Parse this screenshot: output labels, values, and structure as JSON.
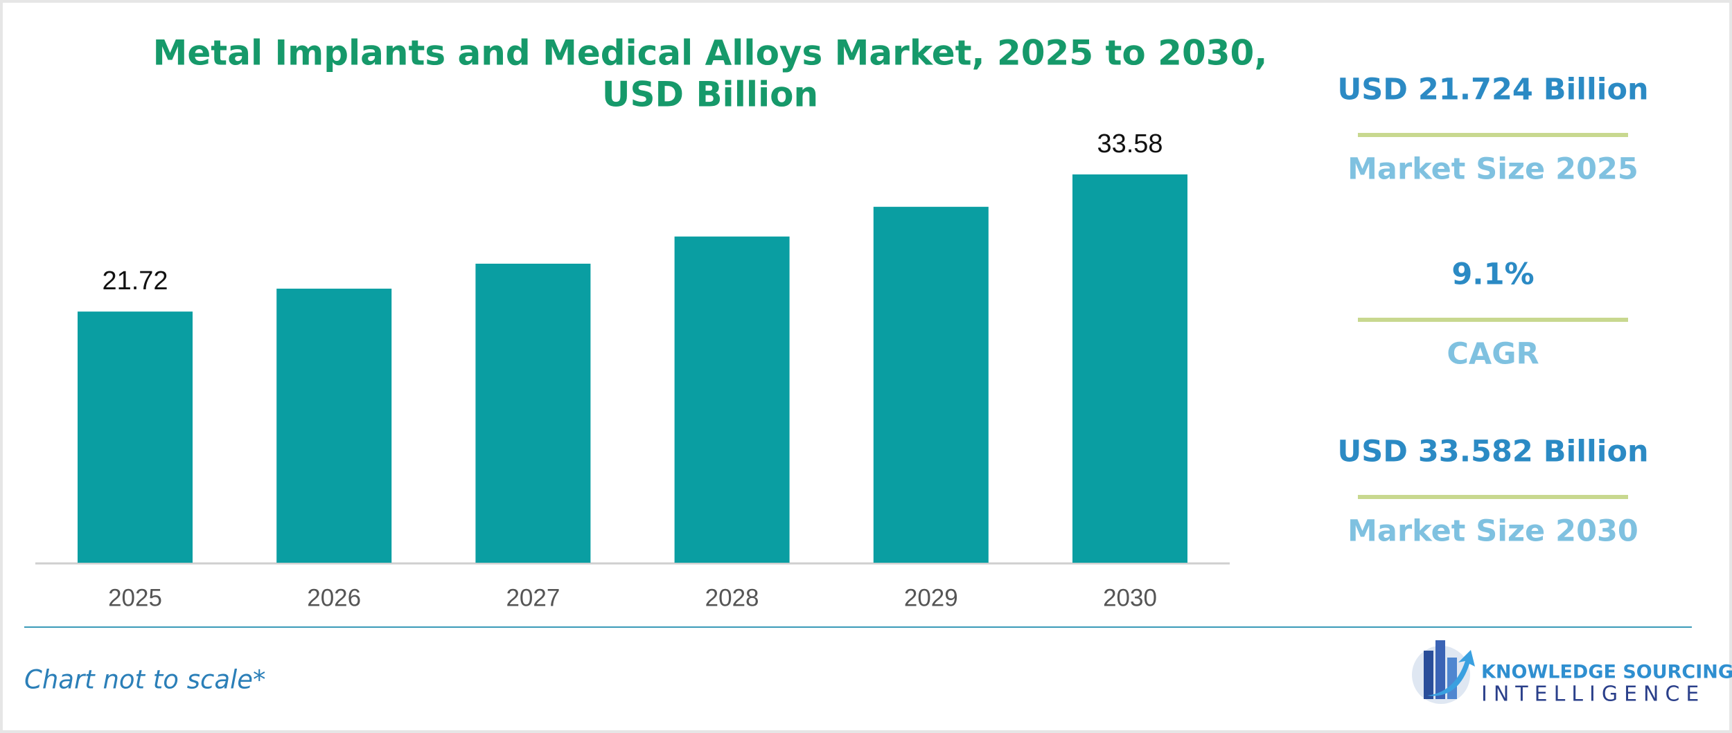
{
  "chart_data": {
    "type": "bar",
    "title": "Metal Implants and Medical Alloys Market, 2025 to 2030,",
    "subtitle": "USD Billion",
    "categories": [
      "2025",
      "2026",
      "2027",
      "2028",
      "2029",
      "2030"
    ],
    "values": [
      21.72,
      23.7,
      25.86,
      28.21,
      30.78,
      33.58
    ],
    "value_labels": [
      "21.72",
      null,
      null,
      null,
      null,
      "33.58"
    ],
    "color": "#0a9ea2",
    "footnote": "Chart not to scale*"
  },
  "stats": [
    {
      "value": "USD 21.724 Billion",
      "label": "Market Size 2025"
    },
    {
      "value": "9.1%",
      "label": "CAGR"
    },
    {
      "value": "USD 33.582 Billion",
      "label": "Market Size 2030"
    }
  ],
  "logo": {
    "line1": "KNOWLEDGE SOURCING",
    "line2": "INTELLIGENCE"
  }
}
